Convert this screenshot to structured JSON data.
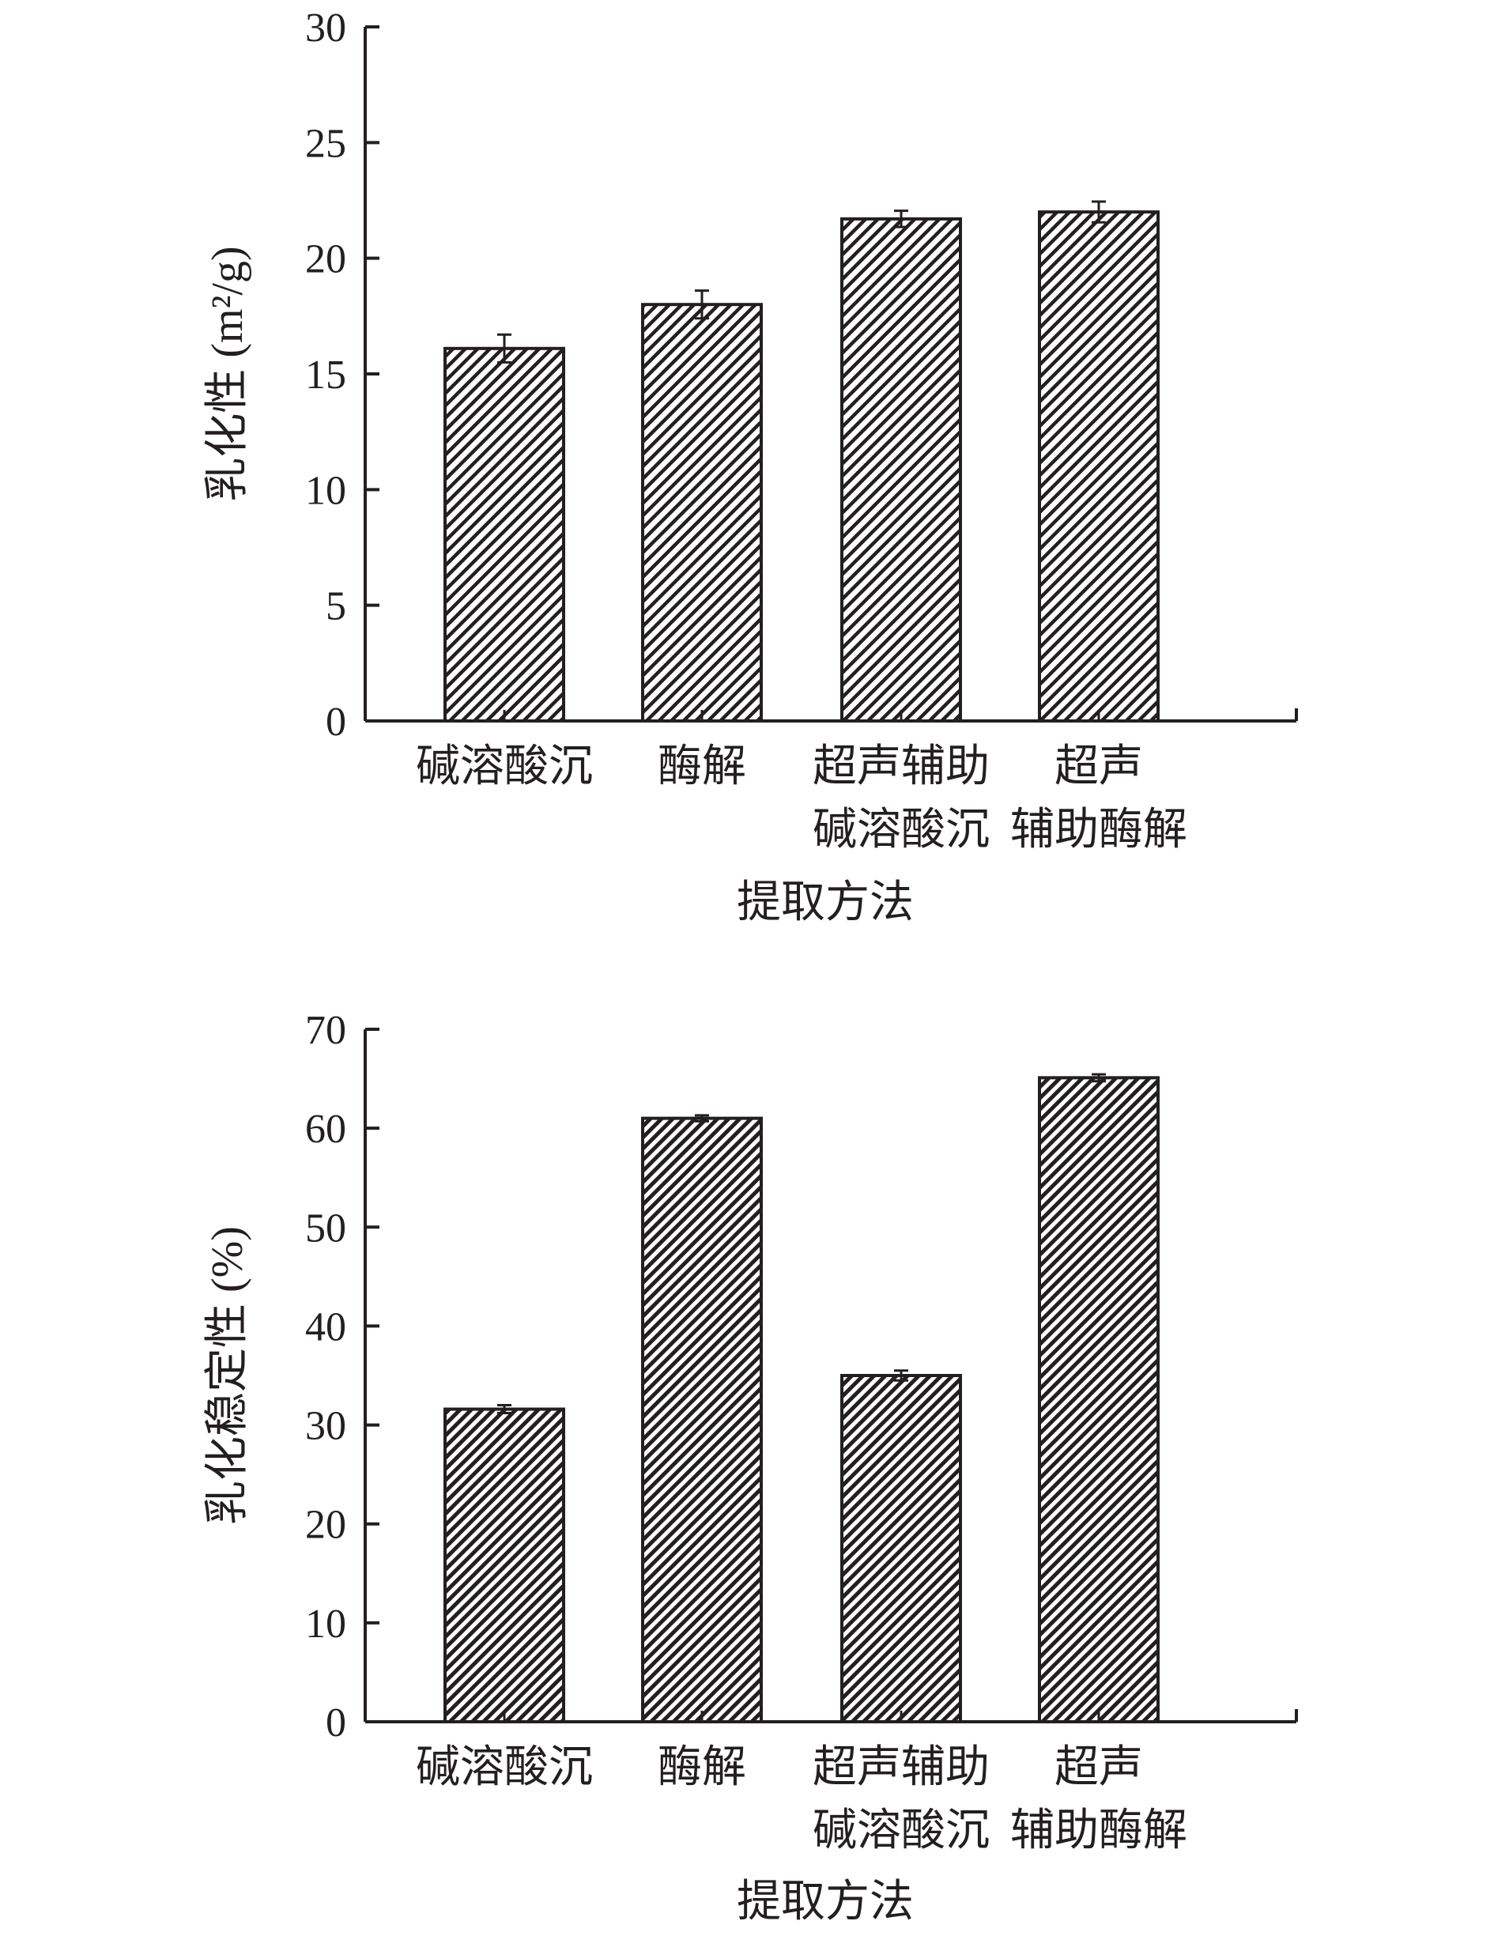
{
  "chart_data": [
    {
      "type": "bar",
      "categories": [
        [
          "碱溶酸沉"
        ],
        [
          "酶解"
        ],
        [
          "超声辅助",
          "碱溶酸沉"
        ],
        [
          "超声",
          "辅助酶解"
        ]
      ],
      "values": [
        16.1,
        18.0,
        21.7,
        22.0
      ],
      "errors": [
        0.6,
        0.6,
        0.35,
        0.45
      ],
      "xlabel": "提取方法",
      "ylabel": "乳化性 (m²/g)",
      "ylim": [
        0,
        30
      ],
      "yticks": [
        "0",
        "5",
        "10",
        "15",
        "20",
        "25",
        "30"
      ],
      "grid": false,
      "fill_pattern": "diagonal-hatch"
    },
    {
      "type": "bar",
      "categories": [
        [
          "碱溶酸沉"
        ],
        [
          "酶解"
        ],
        [
          "超声辅助",
          "碱溶酸沉"
        ],
        [
          "超声",
          "辅助酶解"
        ]
      ],
      "values": [
        31.6,
        61.0,
        35.0,
        65.1
      ],
      "errors": [
        0.4,
        0.3,
        0.5,
        0.35
      ],
      "xlabel": "提取方法",
      "ylabel": "乳化稳定性 (%)",
      "ylim": [
        0,
        70
      ],
      "yticks": [
        "0",
        "10",
        "20",
        "30",
        "40",
        "50",
        "60",
        "70"
      ],
      "grid": false,
      "fill_pattern": "diagonal-hatch"
    }
  ]
}
